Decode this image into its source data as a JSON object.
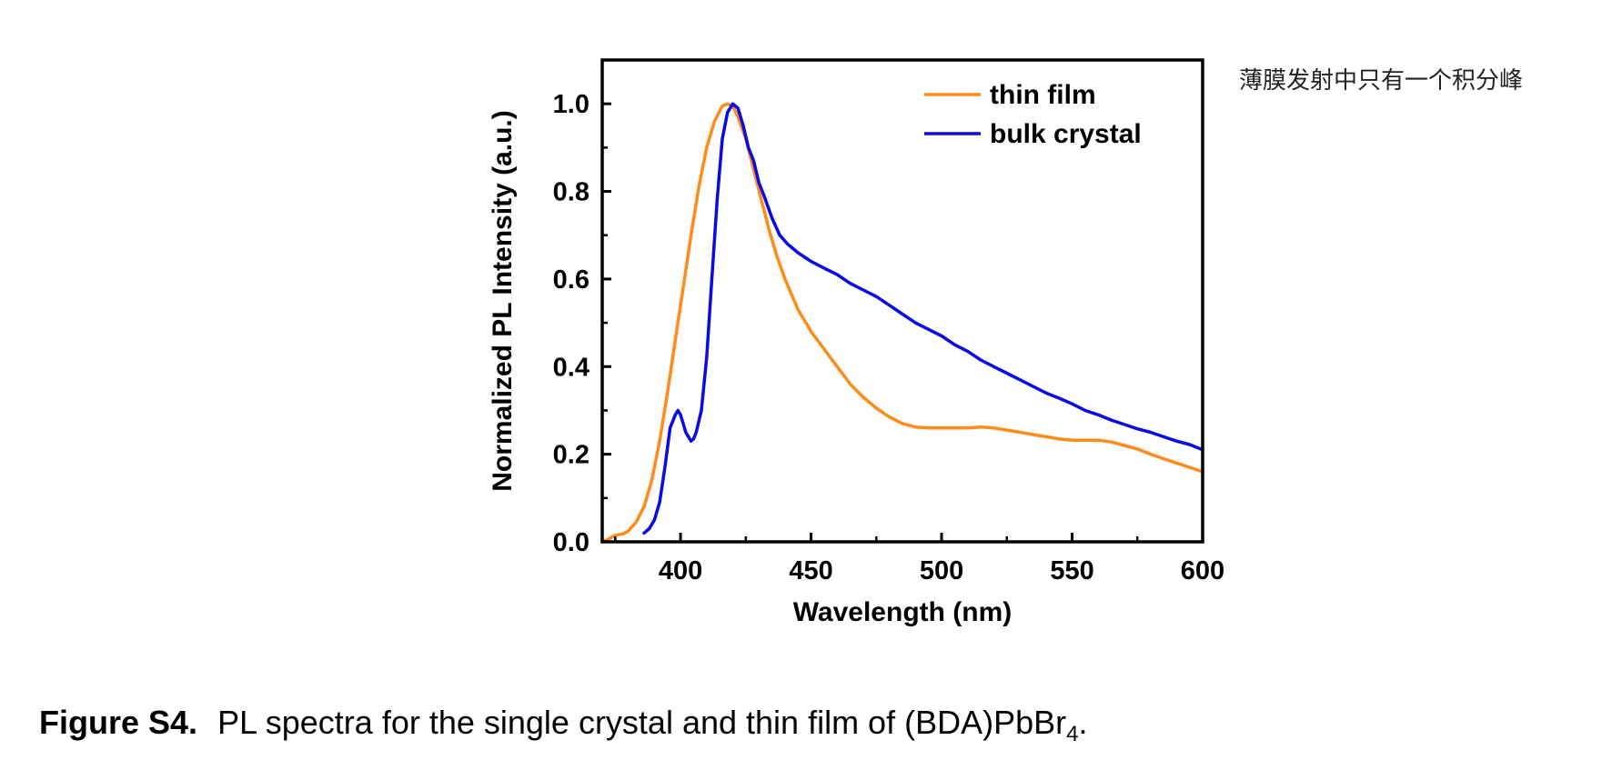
{
  "annotation_note": "薄膜发射中只有一个积分峰",
  "caption": {
    "label": "Figure S4.",
    "text_main": "PL spectra for the single crystal and thin film of (BDA)PbBr",
    "text_sub": "4",
    "text_end": "."
  },
  "chart_data": {
    "type": "line",
    "xlabel": "Wavelength (nm)",
    "ylabel": "Normalized PL Intensity (a.u.)",
    "xlim": [
      370,
      600
    ],
    "ylim": [
      0,
      1.1
    ],
    "xticks": [
      400,
      450,
      500,
      550,
      600
    ],
    "yticks": [
      0.0,
      0.2,
      0.4,
      0.6,
      0.8,
      1.0
    ],
    "xtick_labels": [
      "400",
      "450",
      "500",
      "550",
      "600"
    ],
    "ytick_labels": [
      "0.0",
      "0.2",
      "0.4",
      "0.6",
      "0.8",
      "1.0"
    ],
    "legend_position": "top-right",
    "series": [
      {
        "name": "thin film",
        "color": "#FF8C1A",
        "x": [
          370,
          372,
          375,
          378,
          380,
          383,
          386,
          389,
          392,
          395,
          398,
          401,
          404,
          407,
          410,
          413,
          416,
          418,
          420,
          422,
          425,
          428,
          431,
          434,
          437,
          440,
          445,
          450,
          455,
          460,
          465,
          470,
          475,
          480,
          485,
          490,
          495,
          500,
          505,
          510,
          515,
          520,
          525,
          530,
          535,
          540,
          545,
          550,
          555,
          560,
          565,
          570,
          575,
          580,
          585,
          590,
          595,
          600
        ],
        "y": [
          0.0,
          0.005,
          0.015,
          0.018,
          0.025,
          0.045,
          0.08,
          0.14,
          0.23,
          0.34,
          0.46,
          0.58,
          0.7,
          0.81,
          0.9,
          0.96,
          0.995,
          1.0,
          0.995,
          0.97,
          0.92,
          0.85,
          0.78,
          0.71,
          0.65,
          0.6,
          0.53,
          0.48,
          0.44,
          0.4,
          0.36,
          0.33,
          0.305,
          0.285,
          0.27,
          0.262,
          0.26,
          0.26,
          0.26,
          0.26,
          0.262,
          0.26,
          0.255,
          0.25,
          0.245,
          0.24,
          0.235,
          0.232,
          0.232,
          0.232,
          0.228,
          0.22,
          0.212,
          0.2,
          0.19,
          0.18,
          0.17,
          0.16
        ]
      },
      {
        "name": "bulk crystal",
        "color": "#0A0AE6",
        "x": [
          386,
          388,
          390,
          392,
          394,
          396,
          398,
          399,
          400,
          401,
          402,
          404,
          405,
          406,
          408,
          410,
          412,
          414,
          416,
          418,
          420,
          422,
          424,
          426,
          428,
          430,
          432,
          435,
          438,
          441,
          445,
          450,
          455,
          460,
          465,
          470,
          475,
          480,
          485,
          490,
          495,
          500,
          505,
          510,
          515,
          520,
          525,
          530,
          535,
          540,
          545,
          550,
          555,
          560,
          565,
          570,
          575,
          580,
          585,
          590,
          595,
          600
        ],
        "y": [
          0.02,
          0.03,
          0.05,
          0.09,
          0.17,
          0.26,
          0.29,
          0.3,
          0.29,
          0.27,
          0.25,
          0.23,
          0.235,
          0.25,
          0.3,
          0.42,
          0.6,
          0.78,
          0.92,
          0.98,
          1.0,
          0.99,
          0.95,
          0.9,
          0.87,
          0.82,
          0.79,
          0.74,
          0.7,
          0.68,
          0.66,
          0.64,
          0.625,
          0.61,
          0.59,
          0.575,
          0.56,
          0.54,
          0.52,
          0.5,
          0.485,
          0.47,
          0.45,
          0.435,
          0.415,
          0.4,
          0.385,
          0.37,
          0.355,
          0.34,
          0.328,
          0.315,
          0.3,
          0.29,
          0.278,
          0.268,
          0.258,
          0.25,
          0.24,
          0.23,
          0.222,
          0.21
        ]
      }
    ]
  }
}
